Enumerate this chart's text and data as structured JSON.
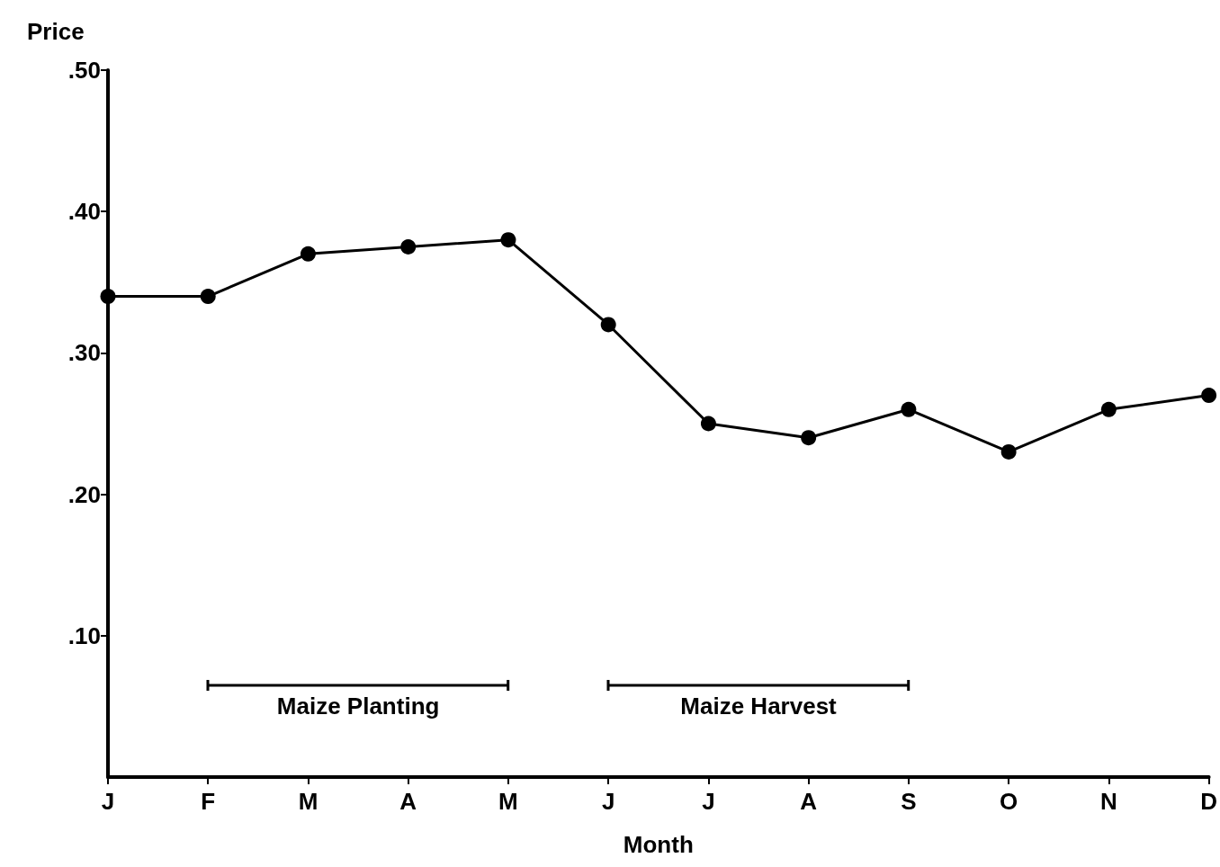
{
  "chart_data": {
    "type": "line",
    "ylabel": "Price",
    "xlabel": "Month",
    "categories": [
      "J",
      "F",
      "M",
      "A",
      "M",
      "J",
      "J",
      "A",
      "S",
      "O",
      "N",
      "D"
    ],
    "series": [
      {
        "color": "#000000",
        "values": [
          0.34,
          0.34,
          0.37,
          0.375,
          0.38,
          0.32,
          0.25,
          0.24,
          0.26,
          0.23,
          0.26,
          0.27
        ]
      }
    ],
    "ylim": [
      0,
      0.5
    ],
    "yticks": [
      {
        "value": 0.1,
        "label": ".10"
      },
      {
        "value": 0.2,
        "label": ".20"
      },
      {
        "value": 0.3,
        "label": ".30"
      },
      {
        "value": 0.4,
        "label": ".40"
      },
      {
        "value": 0.5,
        "label": ".50"
      }
    ],
    "annotations": [
      "Maize Planting",
      "Maize Harvest"
    ],
    "marker": "circle",
    "line_style": "solid",
    "grid": false
  }
}
